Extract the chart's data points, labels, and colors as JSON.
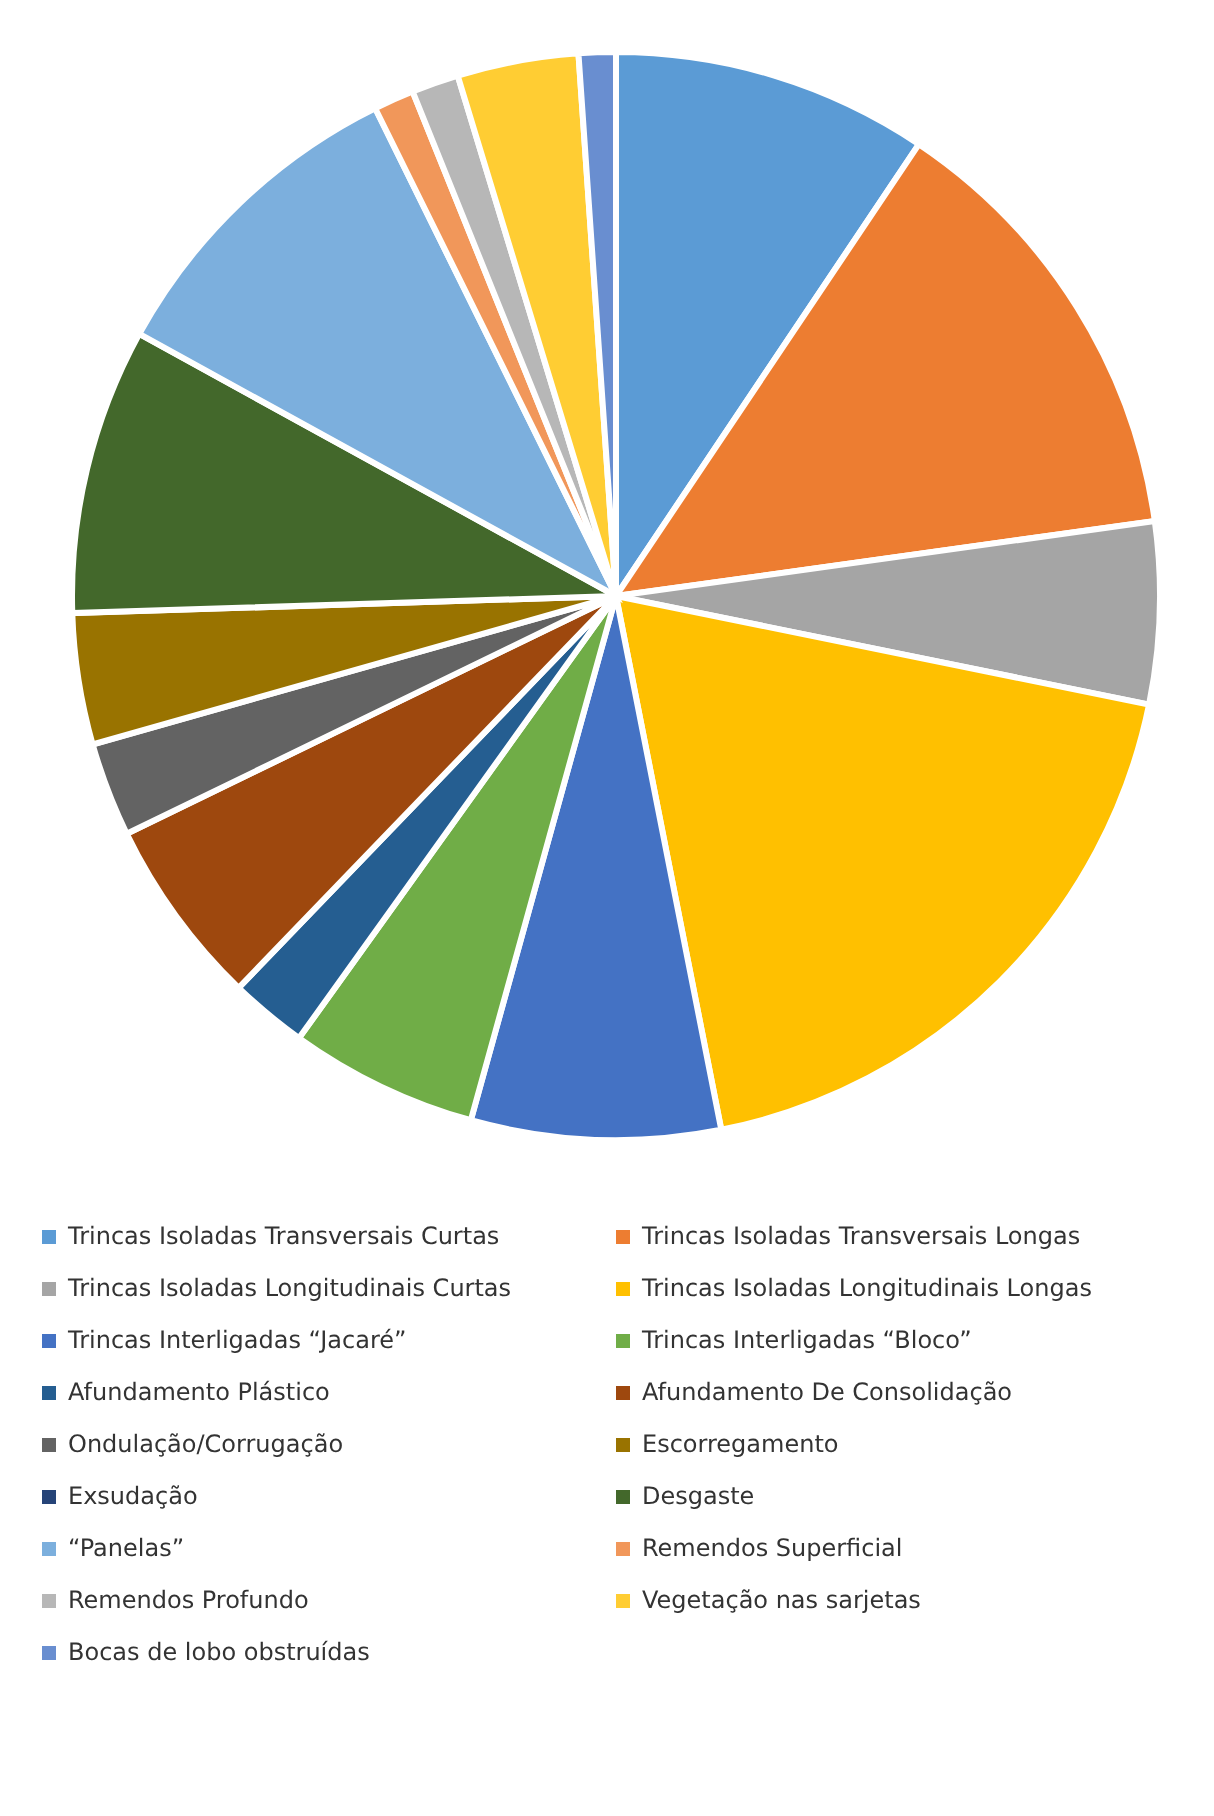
{
  "chart_data": {
    "type": "pie",
    "legend": "bottom",
    "categories": [
      "Trincas Isoladas Transversais Curtas",
      "Trincas Isoladas Transversais Longas",
      "Trincas Isoladas Longitudinais Curtas",
      "Trincas Isoladas Longitudinais Longas",
      "Trincas Interligadas “Jacaré”",
      "Trincas Interligadas “Bloco”",
      "Afundamento Plástico",
      "Afundamento De Consolidação",
      "Ondulação/Corrugação",
      "Escorregamento",
      "Exsudação",
      "Desgaste",
      "“Panelas”",
      "Remendos Superficial",
      "Remendos Profundo",
      "Vegetação nas sarjetas",
      "Bocas de lobo obstruídas"
    ],
    "values": [
      9.4,
      13.4,
      5.4,
      18.7,
      7.4,
      5.6,
      2.3,
      5.6,
      2.8,
      3.9,
      0,
      8.5,
      9.7,
      1.2,
      1.4,
      3.6,
      1.1
    ],
    "colors": [
      "#5b9bd5",
      "#ed7d31",
      "#a5a5a5",
      "#ffc000",
      "#4472c4",
      "#70ad47",
      "#255e91",
      "#9e480e",
      "#636363",
      "#997300",
      "#264478",
      "#43682b",
      "#7cafdd",
      "#f1975a",
      "#b7b7b7",
      "#ffcd33",
      "#698ed0"
    ]
  }
}
